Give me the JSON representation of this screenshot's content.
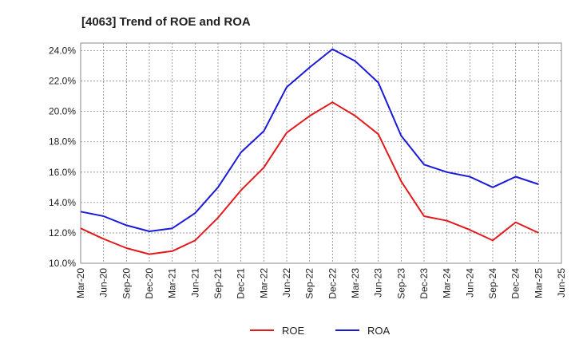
{
  "chart_data": {
    "type": "line",
    "title": "[4063]  Trend of ROE and ROA",
    "xlabel": "",
    "ylabel": "",
    "ylim": [
      10.0,
      24.5
    ],
    "yticks": [
      "10.0%",
      "12.0%",
      "14.0%",
      "16.0%",
      "18.0%",
      "20.0%",
      "22.0%",
      "24.0%"
    ],
    "ytick_values": [
      10,
      12,
      14,
      16,
      18,
      20,
      22,
      24
    ],
    "categories": [
      "Mar-20",
      "Jun-20",
      "Sep-20",
      "Dec-20",
      "Mar-21",
      "Jun-21",
      "Sep-21",
      "Dec-21",
      "Mar-22",
      "Jun-22",
      "Sep-22",
      "Dec-22",
      "Mar-23",
      "Jun-23",
      "Sep-23",
      "Dec-23",
      "Mar-24",
      "Jun-24",
      "Sep-24",
      "Dec-24",
      "Mar-25",
      "Jun-25"
    ],
    "grid": true,
    "legend_position": "bottom-center",
    "series": [
      {
        "name": "ROE",
        "color": "#e31a1c",
        "values": [
          12.3,
          11.6,
          11.0,
          10.6,
          10.8,
          11.5,
          13.0,
          14.8,
          16.3,
          18.6,
          19.7,
          20.6,
          19.7,
          18.5,
          15.4,
          13.1,
          12.8,
          12.2,
          11.5,
          12.7,
          12.0,
          null
        ]
      },
      {
        "name": "ROA",
        "color": "#1a1adb",
        "values": [
          13.4,
          13.1,
          12.5,
          12.1,
          12.3,
          13.3,
          15.0,
          17.3,
          18.7,
          21.6,
          22.9,
          24.1,
          23.3,
          21.9,
          18.4,
          16.5,
          16.0,
          15.7,
          15.0,
          15.7,
          15.2,
          null
        ]
      }
    ]
  }
}
